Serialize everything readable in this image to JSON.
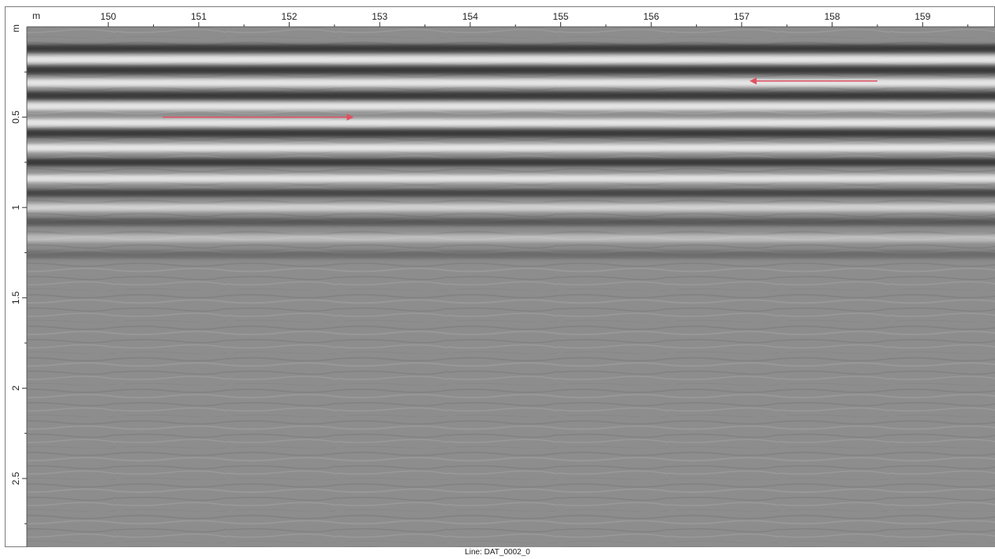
{
  "chart_data": {
    "type": "heatmap",
    "subtype": "gpr-radargram",
    "colormap": "grayscale",
    "x_unit": "m",
    "y_unit": "m",
    "x_range": [
      149.1,
      159.8
    ],
    "y_range": [
      0,
      2.88
    ],
    "x_ticks": [
      150,
      151,
      152,
      153,
      154,
      155,
      156,
      157,
      158,
      159
    ],
    "x_tick_labels": [
      "150",
      "151",
      "152",
      "153",
      "154",
      "155",
      "156",
      "157",
      "158",
      "159"
    ],
    "y_ticks": [
      0.5,
      1,
      1.5,
      2,
      2.5
    ],
    "y_tick_labels": [
      "0.5",
      "1",
      "1.5",
      "2",
      "2.5"
    ],
    "footer": "Line: DAT_0002_0",
    "reflection_bands": [
      {
        "depth": 0.12,
        "tone": "dark"
      },
      {
        "depth": 0.18,
        "tone": "light"
      },
      {
        "depth": 0.24,
        "tone": "dark"
      },
      {
        "depth": 0.31,
        "tone": "light"
      },
      {
        "depth": 0.38,
        "tone": "dark"
      },
      {
        "depth": 0.44,
        "tone": "light"
      },
      {
        "depth": 0.53,
        "tone": "light"
      },
      {
        "depth": 0.59,
        "tone": "dark"
      },
      {
        "depth": 0.67,
        "tone": "light"
      },
      {
        "depth": 0.75,
        "tone": "dark"
      },
      {
        "depth": 0.84,
        "tone": "light"
      },
      {
        "depth": 0.92,
        "tone": "dark"
      },
      {
        "depth": 1.0,
        "tone": "light"
      },
      {
        "depth": 1.08,
        "tone": "dark"
      },
      {
        "depth": 1.17,
        "tone": "light"
      },
      {
        "depth": 1.26,
        "tone": "dark"
      }
    ],
    "annotations": [
      {
        "type": "arrow",
        "x_start": 150.6,
        "x_end": 152.7,
        "depth": 0.5,
        "color": "#e05060"
      },
      {
        "type": "arrow",
        "x_start": 158.5,
        "x_end": 157.1,
        "depth": 0.3,
        "color": "#e05060"
      }
    ]
  }
}
